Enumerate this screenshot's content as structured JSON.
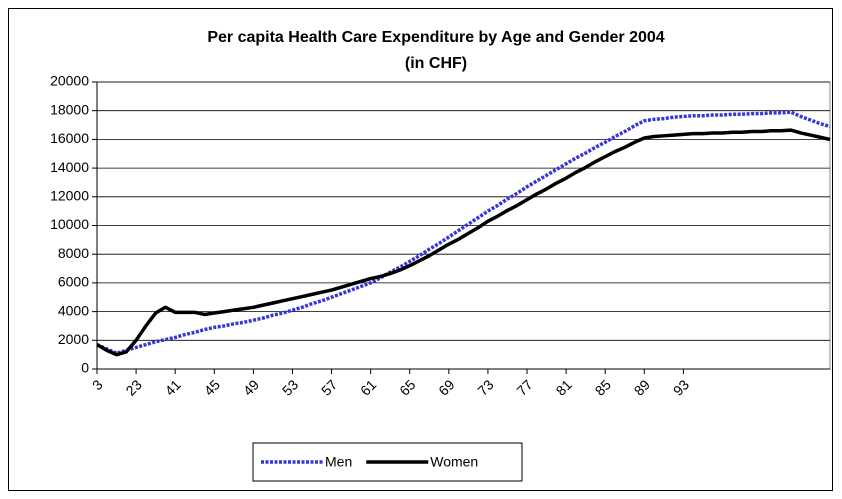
{
  "chart_data": {
    "type": "line",
    "title": "Per capita Health Care Expenditure by Age and Gender 2004",
    "subtitle": "(in CHF)",
    "categories": [
      "3",
      null,
      null,
      null,
      "23",
      null,
      null,
      null,
      "41",
      null,
      null,
      null,
      "45",
      null,
      null,
      null,
      "49",
      null,
      null,
      null,
      "53",
      null,
      null,
      null,
      "57",
      null,
      null,
      null,
      "61",
      null,
      null,
      null,
      "65",
      null,
      null,
      null,
      "69",
      null,
      null,
      null,
      "73",
      null,
      null,
      null,
      "77",
      null,
      null,
      null,
      "81",
      null,
      null,
      null,
      "85",
      null,
      null,
      null,
      "89",
      null,
      null,
      null,
      "93",
      null,
      null,
      null,
      null,
      null,
      null,
      null,
      null,
      null,
      null,
      null,
      null,
      null,
      null,
      null
    ],
    "series": [
      {
        "name": "Men",
        "color": "#3636d8",
        "style": "dashed",
        "values": [
          1700,
          1400,
          1100,
          1300,
          1500,
          1700,
          1900,
          2050,
          2200,
          2400,
          2550,
          2750,
          2900,
          3000,
          3150,
          3250,
          3400,
          3550,
          3750,
          3900,
          4100,
          4300,
          4550,
          4750,
          5000,
          5250,
          5500,
          5750,
          6000,
          6350,
          6750,
          7100,
          7500,
          7900,
          8350,
          8750,
          9200,
          9650,
          10100,
          10550,
          11000,
          11400,
          11850,
          12250,
          12700,
          13100,
          13500,
          13900,
          14300,
          14700,
          15050,
          15450,
          15800,
          16200,
          16550,
          16950,
          17300,
          17400,
          17450,
          17550,
          17600,
          17650,
          17650,
          17700,
          17700,
          17750,
          17750,
          17800,
          17800,
          17850,
          17850,
          17900,
          17600,
          17350,
          17100,
          16900
        ]
      },
      {
        "name": "Women",
        "color": "#000000",
        "style": "solid",
        "values": [
          1700,
          1300,
          1000,
          1200,
          2000,
          3000,
          3900,
          4300,
          3950,
          3950,
          3950,
          3800,
          3900,
          4000,
          4100,
          4200,
          4300,
          4450,
          4600,
          4750,
          4900,
          5050,
          5200,
          5350,
          5500,
          5700,
          5900,
          6100,
          6300,
          6450,
          6650,
          6900,
          7200,
          7550,
          7900,
          8300,
          8700,
          9050,
          9450,
          9850,
          10300,
          10650,
          11050,
          11400,
          11800,
          12200,
          12550,
          12950,
          13300,
          13700,
          14050,
          14450,
          14800,
          15150,
          15450,
          15800,
          16100,
          16200,
          16250,
          16300,
          16350,
          16400,
          16400,
          16450,
          16450,
          16500,
          16500,
          16550,
          16550,
          16600,
          16600,
          16650,
          16450,
          16300,
          16150,
          16000
        ]
      }
    ],
    "ylim": [
      0,
      20000
    ],
    "yticks": [
      0,
      2000,
      4000,
      6000,
      8000,
      10000,
      12000,
      14000,
      16000,
      18000,
      20000
    ],
    "grid": true,
    "legend": "bottom"
  }
}
